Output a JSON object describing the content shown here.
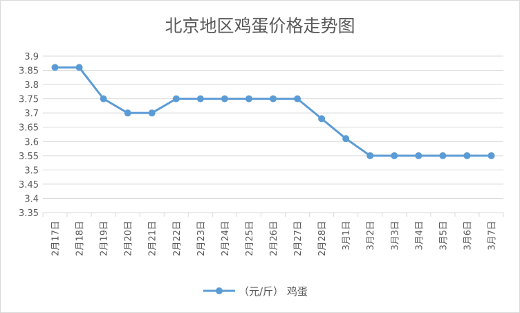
{
  "chart_data": {
    "type": "line",
    "title": "北京地区鸡蛋价格走势图",
    "categories": [
      "2月17日",
      "2月18日",
      "2月19日",
      "2月20日",
      "2月21日",
      "2月22日",
      "2月23日",
      "2月24日",
      "2月25日",
      "2月26日",
      "2月27日",
      "2月28日",
      "3月1日",
      "3月2日",
      "3月3日",
      "3月4日",
      "3月5日",
      "3月6日",
      "3月7日"
    ],
    "series": [
      {
        "name": "（元/斤） 鸡蛋",
        "values": [
          3.86,
          3.86,
          3.75,
          3.7,
          3.7,
          3.75,
          3.75,
          3.75,
          3.75,
          3.75,
          3.75,
          3.68,
          3.61,
          3.55,
          3.55,
          3.55,
          3.55,
          3.55,
          3.55
        ]
      }
    ],
    "ylim": [
      3.35,
      3.9
    ],
    "yticks": [
      "3.35",
      "3.4",
      "3.45",
      "3.5",
      "3.55",
      "3.6",
      "3.65",
      "3.7",
      "3.75",
      "3.8",
      "3.85",
      "3.9"
    ],
    "grid": true,
    "legend_position": "bottom",
    "color": "#5b9bd5"
  }
}
